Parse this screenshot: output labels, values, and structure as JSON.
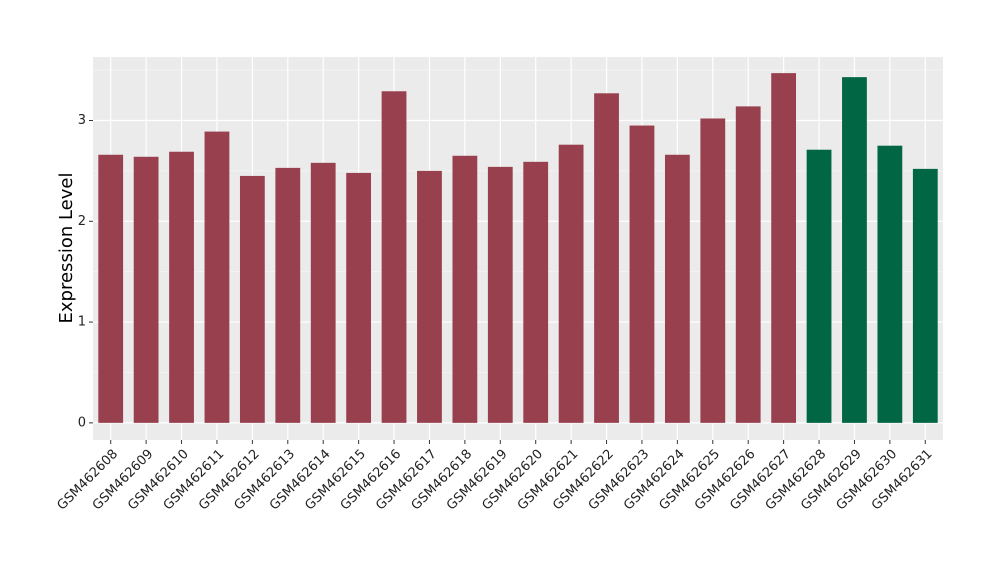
{
  "chart_data": {
    "type": "bar",
    "y_label": "Expression Level",
    "categories": [
      "GSM462608",
      "GSM462609",
      "GSM462610",
      "GSM462611",
      "GSM462612",
      "GSM462613",
      "GSM462614",
      "GSM462615",
      "GSM462616",
      "GSM462617",
      "GSM462618",
      "GSM462619",
      "GSM462620",
      "GSM462621",
      "GSM462622",
      "GSM462623",
      "GSM462624",
      "GSM462625",
      "GSM462626",
      "GSM462627",
      "GSM462628",
      "GSM462629",
      "GSM462630",
      "GSM462631"
    ],
    "values": [
      2.66,
      2.64,
      2.69,
      2.89,
      2.45,
      2.53,
      2.58,
      2.48,
      3.29,
      2.5,
      2.65,
      2.54,
      2.59,
      2.76,
      3.27,
      2.95,
      2.66,
      3.02,
      3.14,
      3.47,
      2.71,
      3.43,
      2.75,
      2.52
    ],
    "colors": [
      "#99404f",
      "#99404f",
      "#99404f",
      "#99404f",
      "#99404f",
      "#99404f",
      "#99404f",
      "#99404f",
      "#99404f",
      "#99404f",
      "#99404f",
      "#99404f",
      "#99404f",
      "#99404f",
      "#99404f",
      "#99404f",
      "#99404f",
      "#99404f",
      "#99404f",
      "#99404f",
      "#006644",
      "#006644",
      "#006644",
      "#006644"
    ],
    "ylim": [
      -0.17,
      3.63
    ],
    "yticks": [
      0,
      1,
      2,
      3
    ],
    "grid": true,
    "minor_grid": true
  }
}
